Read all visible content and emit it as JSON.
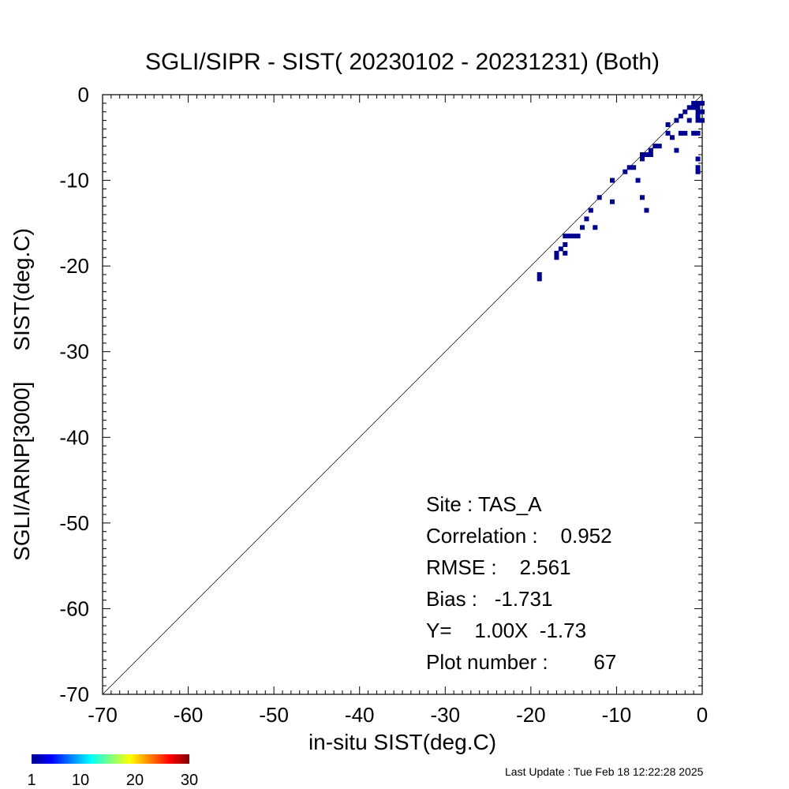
{
  "chart_data": {
    "type": "heatmap",
    "title": "SGLI/SIPR - SIST( 20230102 - 20231231) (Both)",
    "xlabel": "in-situ SIST(deg.C)",
    "ylabel": "SGLI/ARNP[3000]     SIST(deg.C)",
    "xlim": [
      -70,
      0
    ],
    "ylim": [
      -70,
      0
    ],
    "x_ticks": [
      "-70",
      "-60",
      "-50",
      "-40",
      "-30",
      "-20",
      "-10",
      "0"
    ],
    "y_ticks": [
      "-70",
      "-60",
      "-50",
      "-40",
      "-30",
      "-20",
      "-10",
      "0"
    ],
    "reference_line": "y = x",
    "bin_size": 1.0,
    "points": [
      [
        -19.0,
        -21.0
      ],
      [
        -19.0,
        -21.5
      ],
      [
        -17.0,
        -18.5
      ],
      [
        -17.0,
        -19.0
      ],
      [
        -16.5,
        -18.0
      ],
      [
        -16.0,
        -16.5
      ],
      [
        -16.0,
        -17.5
      ],
      [
        -16.0,
        -18.5
      ],
      [
        -15.5,
        -16.5
      ],
      [
        -15.0,
        -16.5
      ],
      [
        -14.5,
        -16.5
      ],
      [
        -14.0,
        -15.5
      ],
      [
        -13.5,
        -14.5
      ],
      [
        -13.0,
        -13.5
      ],
      [
        -12.5,
        -15.5
      ],
      [
        -12.0,
        -12.0
      ],
      [
        -10.5,
        -12.5
      ],
      [
        -10.5,
        -10.0
      ],
      [
        -9.0,
        -9.0
      ],
      [
        -8.5,
        -8.5
      ],
      [
        -8.0,
        -8.5
      ],
      [
        -7.5,
        -10.0
      ],
      [
        -7.0,
        -7.5
      ],
      [
        -7.0,
        -7.0
      ],
      [
        -7.0,
        -12.0
      ],
      [
        -6.5,
        -13.5
      ],
      [
        -6.5,
        -7.0
      ],
      [
        -6.0,
        -7.0
      ],
      [
        -6.0,
        -6.5
      ],
      [
        -5.5,
        -6.0
      ],
      [
        -5.0,
        -6.0
      ],
      [
        -4.0,
        -4.5
      ],
      [
        -4.0,
        -3.5
      ],
      [
        -3.5,
        -5.0
      ],
      [
        -3.0,
        -3.0
      ],
      [
        -3.0,
        -6.5
      ],
      [
        -2.5,
        -2.5
      ],
      [
        -2.5,
        -4.5
      ],
      [
        -2.0,
        -2.0
      ],
      [
        -2.0,
        -4.5
      ],
      [
        -1.5,
        -1.5
      ],
      [
        -1.5,
        -3.0
      ],
      [
        -1.0,
        -4.5
      ],
      [
        -1.0,
        -1.0
      ],
      [
        -1.0,
        -1.5
      ],
      [
        -0.5,
        -1.0
      ],
      [
        -0.5,
        -1.5
      ],
      [
        -0.5,
        -2.0
      ],
      [
        -0.5,
        -2.5
      ],
      [
        -0.5,
        -3.0
      ],
      [
        -0.5,
        -4.5
      ],
      [
        -0.5,
        -7.5
      ],
      [
        -0.5,
        -8.5
      ],
      [
        -0.5,
        -9.0
      ],
      [
        0.0,
        -1.0
      ],
      [
        0.0,
        -2.0
      ],
      [
        0.0,
        -3.0
      ]
    ],
    "colorbar": {
      "ticks": [
        "1",
        "10",
        "20",
        "30"
      ],
      "min": 1,
      "max": 30,
      "colormap": "jet"
    },
    "stats": {
      "site": "Site : TAS_A",
      "correlation": "Correlation :    0.952",
      "rmse": "RMSE :    2.561",
      "bias": "Bias :   -1.731",
      "regression": "Y=    1.00X  -1.73",
      "plot_number": "Plot number :        67"
    },
    "last_update": "Last Update : Tue Feb 18 12:22:28 2025",
    "point_color": "#00008f"
  }
}
